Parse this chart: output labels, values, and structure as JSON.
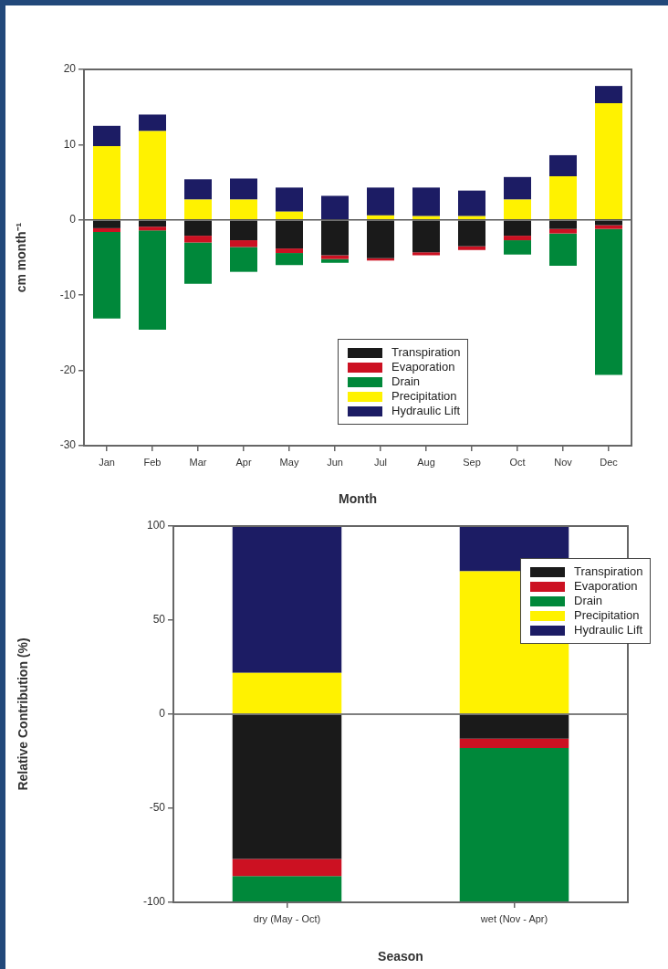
{
  "chart_data": [
    {
      "type": "bar",
      "stacked": true,
      "xlabel": "Month",
      "ylabel": "cm month⁻¹",
      "categories": [
        "Jan",
        "Feb",
        "Mar",
        "Apr",
        "May",
        "Jun",
        "Jul",
        "Aug",
        "Sep",
        "Oct",
        "Nov",
        "Dec"
      ],
      "series": [
        {
          "name": "Transpiration",
          "color": "#1a1a1a",
          "values": [
            -1.1,
            -0.9,
            -2.1,
            -2.7,
            -3.8,
            -4.7,
            -5.1,
            -4.3,
            -3.5,
            -2.1,
            -1.2,
            -0.7
          ]
        },
        {
          "name": "Evaporation",
          "color": "#cc1122",
          "values": [
            -0.5,
            -0.5,
            -0.9,
            -0.9,
            -0.6,
            -0.5,
            -0.3,
            -0.4,
            -0.5,
            -0.6,
            -0.6,
            -0.5
          ]
        },
        {
          "name": "Drain",
          "color": "#00883a",
          "values": [
            -11.5,
            -13.2,
            -5.5,
            -3.3,
            -1.6,
            -0.5,
            0,
            0,
            0,
            -1.9,
            -4.3,
            -19.4
          ]
        },
        {
          "name": "Precipitation",
          "color": "#fff200",
          "values": [
            9.8,
            11.8,
            2.7,
            2.7,
            1.1,
            0,
            0.6,
            0.5,
            0.5,
            2.7,
            5.8,
            15.5
          ]
        },
        {
          "name": "Hydraulic Lift",
          "color": "#1c1c64",
          "values": [
            2.7,
            2.2,
            2.7,
            2.8,
            3.2,
            3.2,
            3.7,
            3.8,
            3.4,
            3.0,
            2.8,
            2.3
          ]
        }
      ],
      "ylim": [
        -30,
        20
      ],
      "yticks": [
        -30,
        -20,
        -10,
        0,
        10,
        20
      ],
      "grid": false,
      "legend": "bottom right",
      "ref_lines": [
        {
          "axis": "y",
          "value": 0
        }
      ]
    },
    {
      "type": "bar",
      "stacked": true,
      "xlabel": "Season",
      "ylabel": "Relative Contribution (%)",
      "categories": [
        "dry (May - Oct)",
        "wet (Nov - Apr)"
      ],
      "series": [
        {
          "name": "Transpiration",
          "color": "#1a1a1a",
          "values": [
            -77,
            -13
          ]
        },
        {
          "name": "Evaporation",
          "color": "#cc1122",
          "values": [
            -9,
            -5
          ]
        },
        {
          "name": "Drain",
          "color": "#00883a",
          "values": [
            -14,
            -82
          ]
        },
        {
          "name": "Precipitation",
          "color": "#fff200",
          "values": [
            22,
            76
          ]
        },
        {
          "name": "Hydraulic Lift",
          "color": "#1c1c64",
          "values": [
            78,
            24
          ]
        }
      ],
      "ylim": [
        -100,
        100
      ],
      "yticks": [
        -100,
        -50,
        0,
        50,
        100
      ],
      "grid": false,
      "legend": "top right",
      "ref_lines": [
        {
          "axis": "y",
          "value": 0
        }
      ]
    }
  ]
}
